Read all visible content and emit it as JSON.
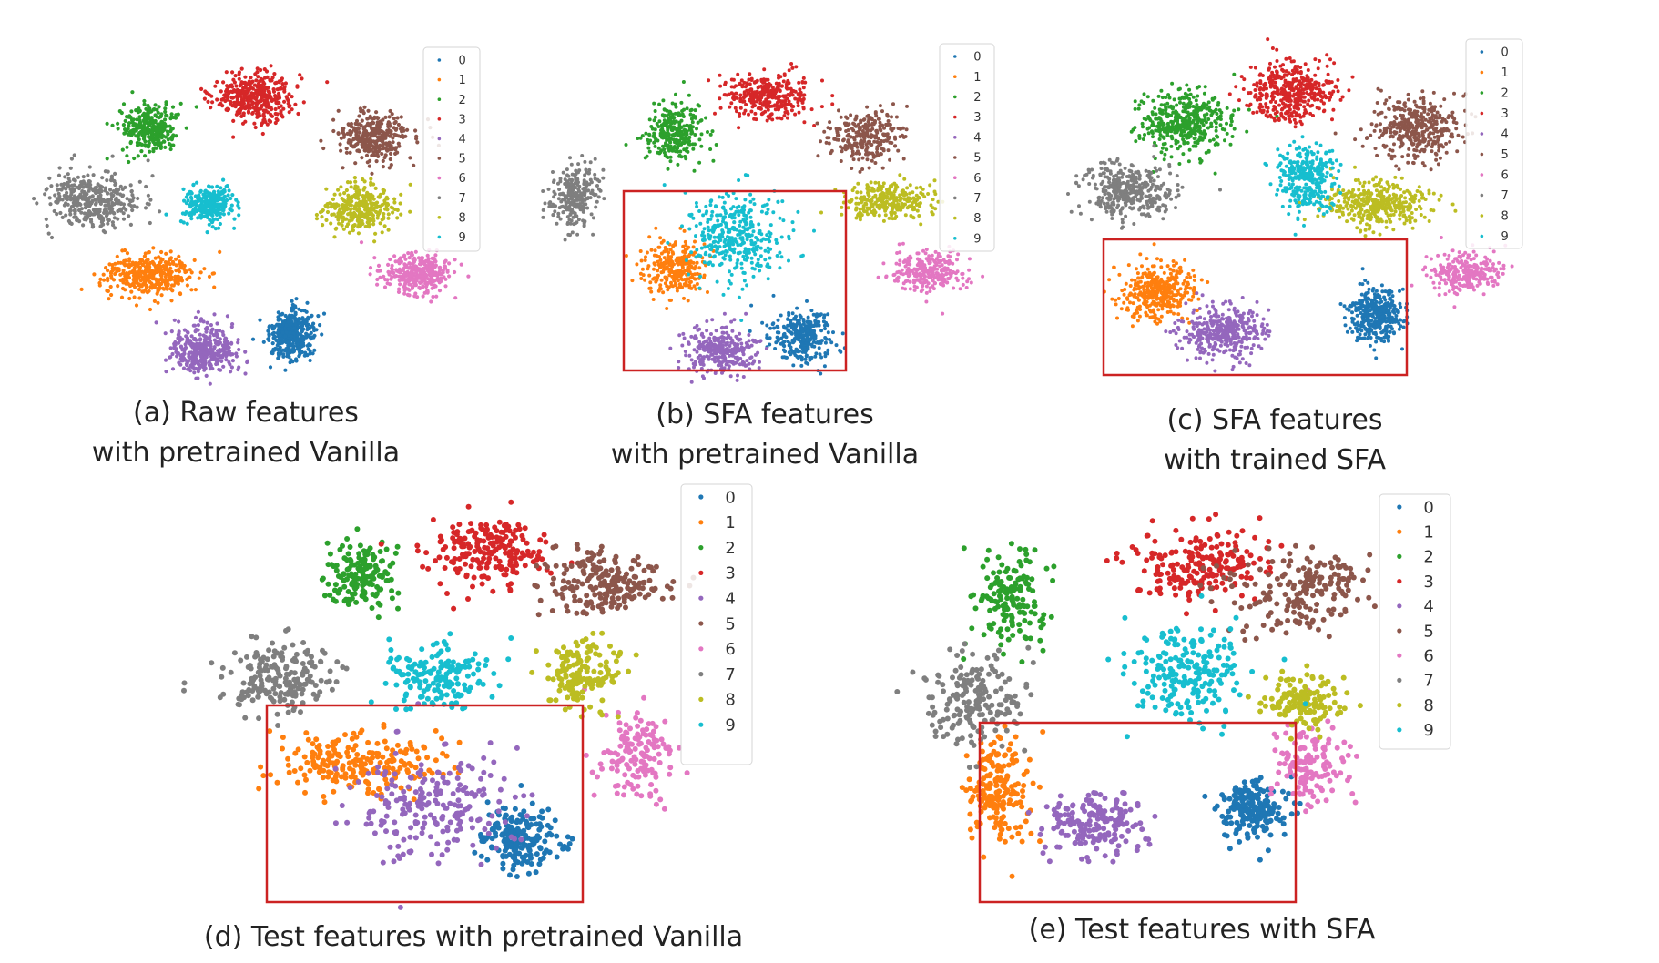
{
  "legend_labels": [
    "0",
    "1",
    "2",
    "3",
    "4",
    "5",
    "6",
    "7",
    "8",
    "9"
  ],
  "class_colors": [
    "#1f77b4",
    "#ff7f0e",
    "#2ca02c",
    "#d62728",
    "#9467bd",
    "#8c564b",
    "#e377c2",
    "#7f7f7f",
    "#bcbd22",
    "#17becf"
  ],
  "highlight_color": "#cc2222",
  "panels": [
    {
      "id": "a",
      "caption": [
        "(a)  Raw features",
        "with pretrained Vanilla"
      ],
      "has_highlight_box": false,
      "clusters": [
        {
          "cls": 0,
          "n": 380,
          "sx": 24,
          "sy": 26
        },
        {
          "cls": 1,
          "n": 380,
          "sx": 52,
          "sy": 24
        },
        {
          "cls": 2,
          "n": 300,
          "sx": 30,
          "sy": 26
        },
        {
          "cls": 3,
          "n": 380,
          "sx": 44,
          "sy": 26
        },
        {
          "cls": 4,
          "n": 380,
          "sx": 36,
          "sy": 26
        },
        {
          "cls": 5,
          "n": 330,
          "sx": 38,
          "sy": 28
        },
        {
          "cls": 6,
          "n": 330,
          "sx": 40,
          "sy": 22
        },
        {
          "cls": 7,
          "n": 380,
          "sx": 52,
          "sy": 28
        },
        {
          "cls": 8,
          "n": 330,
          "sx": 40,
          "sy": 24
        },
        {
          "cls": 9,
          "n": 260,
          "sx": 28,
          "sy": 20
        }
      ]
    },
    {
      "id": "b",
      "caption": [
        "(b) SFA features",
        "with pretrained Vanilla"
      ],
      "has_highlight_box": true,
      "clusters": [
        {
          "cls": 0,
          "n": 300,
          "sx": 34,
          "sy": 30
        },
        {
          "cls": 1,
          "n": 280,
          "sx": 34,
          "sy": 28
        },
        {
          "cls": 2,
          "n": 280,
          "sx": 32,
          "sy": 30
        },
        {
          "cls": 3,
          "n": 320,
          "sx": 50,
          "sy": 26
        },
        {
          "cls": 4,
          "n": 300,
          "sx": 40,
          "sy": 26
        },
        {
          "cls": 5,
          "n": 280,
          "sx": 40,
          "sy": 28
        },
        {
          "cls": 6,
          "n": 260,
          "sx": 40,
          "sy": 22
        },
        {
          "cls": 7,
          "n": 260,
          "sx": 26,
          "sy": 34
        },
        {
          "cls": 8,
          "n": 300,
          "sx": 46,
          "sy": 20
        },
        {
          "cls": 9,
          "n": 380,
          "sx": 50,
          "sy": 46
        }
      ]
    },
    {
      "id": "c",
      "caption": [
        "(c) SFA features",
        "with trained SFA"
      ],
      "has_highlight_box": true,
      "clusters": [
        {
          "cls": 0,
          "n": 380,
          "sx": 30,
          "sy": 30
        },
        {
          "cls": 1,
          "n": 380,
          "sx": 40,
          "sy": 30
        },
        {
          "cls": 2,
          "n": 420,
          "sx": 50,
          "sy": 34
        },
        {
          "cls": 3,
          "n": 420,
          "sx": 46,
          "sy": 34
        },
        {
          "cls": 4,
          "n": 380,
          "sx": 44,
          "sy": 30
        },
        {
          "cls": 5,
          "n": 380,
          "sx": 48,
          "sy": 34
        },
        {
          "cls": 6,
          "n": 260,
          "sx": 40,
          "sy": 22
        },
        {
          "cls": 7,
          "n": 380,
          "sx": 48,
          "sy": 30
        },
        {
          "cls": 8,
          "n": 380,
          "sx": 56,
          "sy": 26
        },
        {
          "cls": 9,
          "n": 320,
          "sx": 32,
          "sy": 36
        }
      ]
    },
    {
      "id": "d",
      "caption": [
        "(d) Test features with pretrained Vanilla"
      ],
      "has_highlight_box": true,
      "clusters": [
        {
          "cls": 0,
          "n": 200,
          "sx": 42,
          "sy": 34
        },
        {
          "cls": 1,
          "n": 220,
          "sx": 90,
          "sy": 36
        },
        {
          "cls": 2,
          "n": 160,
          "sx": 36,
          "sy": 36
        },
        {
          "cls": 3,
          "n": 200,
          "sx": 70,
          "sy": 40
        },
        {
          "cls": 4,
          "n": 220,
          "sx": 90,
          "sy": 60
        },
        {
          "cls": 5,
          "n": 200,
          "sx": 70,
          "sy": 36
        },
        {
          "cls": 6,
          "n": 140,
          "sx": 44,
          "sy": 48
        },
        {
          "cls": 7,
          "n": 200,
          "sx": 60,
          "sy": 40
        },
        {
          "cls": 8,
          "n": 160,
          "sx": 40,
          "sy": 36
        },
        {
          "cls": 9,
          "n": 160,
          "sx": 56,
          "sy": 38
        }
      ]
    },
    {
      "id": "e",
      "caption": [
        "(e) Test features with SFA"
      ],
      "has_highlight_box": true,
      "clusters": [
        {
          "cls": 0,
          "n": 200,
          "sx": 36,
          "sy": 34
        },
        {
          "cls": 1,
          "n": 180,
          "sx": 34,
          "sy": 60
        },
        {
          "cls": 2,
          "n": 160,
          "sx": 40,
          "sy": 50
        },
        {
          "cls": 3,
          "n": 200,
          "sx": 70,
          "sy": 44
        },
        {
          "cls": 4,
          "n": 180,
          "sx": 56,
          "sy": 34
        },
        {
          "cls": 5,
          "n": 180,
          "sx": 80,
          "sy": 46
        },
        {
          "cls": 6,
          "n": 140,
          "sx": 40,
          "sy": 44
        },
        {
          "cls": 7,
          "n": 180,
          "sx": 56,
          "sy": 50
        },
        {
          "cls": 8,
          "n": 140,
          "sx": 46,
          "sy": 28
        },
        {
          "cls": 9,
          "n": 200,
          "sx": 64,
          "sy": 50
        }
      ]
    }
  ],
  "chart_data": [
    {
      "type": "scatter",
      "panel": "a",
      "legend": [
        "0",
        "1",
        "2",
        "3",
        "4",
        "5",
        "6",
        "7",
        "8",
        "9"
      ],
      "note": "t-SNE embedding; axes not shown"
    },
    {
      "type": "scatter",
      "panel": "b",
      "legend": [
        "0",
        "1",
        "2",
        "3",
        "4",
        "5",
        "6",
        "7",
        "8",
        "9"
      ],
      "highlight_box": true
    },
    {
      "type": "scatter",
      "panel": "c",
      "legend": [
        "0",
        "1",
        "2",
        "3",
        "4",
        "5",
        "6",
        "7",
        "8",
        "9"
      ],
      "highlight_box": true
    },
    {
      "type": "scatter",
      "panel": "d",
      "legend": [
        "0",
        "1",
        "2",
        "3",
        "4",
        "5",
        "6",
        "7",
        "8",
        "9"
      ],
      "highlight_box": true
    },
    {
      "type": "scatter",
      "panel": "e",
      "legend": [
        "0",
        "1",
        "2",
        "3",
        "4",
        "5",
        "6",
        "7",
        "8",
        "9"
      ],
      "highlight_box": true
    }
  ]
}
